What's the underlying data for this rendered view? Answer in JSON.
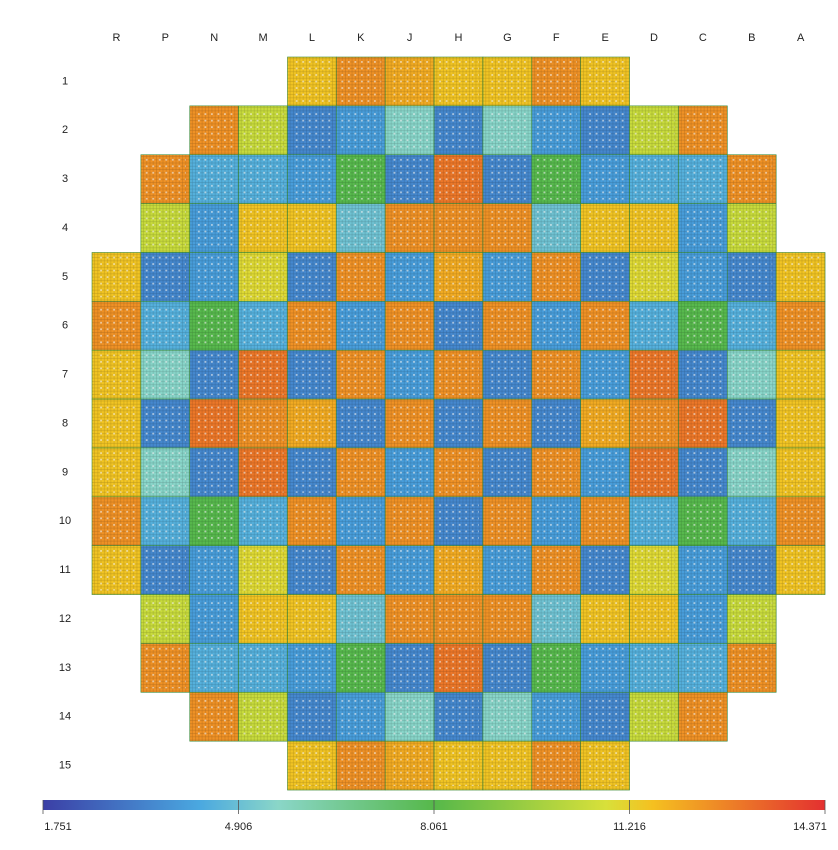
{
  "chart_data": {
    "type": "heatmap",
    "columns": [
      "R",
      "P",
      "N",
      "M",
      "L",
      "K",
      "J",
      "H",
      "G",
      "F",
      "E",
      "D",
      "C",
      "B",
      "A"
    ],
    "rows": [
      "1",
      "2",
      "3",
      "4",
      "5",
      "6",
      "7",
      "8",
      "9",
      "10",
      "11",
      "12",
      "13",
      "14",
      "15"
    ],
    "values": [
      [
        null,
        null,
        null,
        null,
        11.5,
        12.5,
        12,
        11.5,
        11.5,
        12.5,
        11.5,
        null,
        null,
        null,
        null
      ],
      [
        null,
        null,
        12.5,
        10.5,
        3.5,
        4,
        5.5,
        3.5,
        5.5,
        4,
        3.5,
        10.5,
        12.5,
        null,
        null
      ],
      [
        null,
        12.5,
        4.5,
        4.5,
        4,
        8,
        3.5,
        13,
        3.5,
        8,
        4,
        4.5,
        4.5,
        12.5,
        null
      ],
      [
        null,
        10.5,
        4,
        11.5,
        11.5,
        5,
        12.5,
        12.5,
        12.5,
        5,
        11.5,
        11.5,
        4,
        10.5,
        null
      ],
      [
        11.5,
        3.5,
        4,
        11,
        3.5,
        12.5,
        4,
        12,
        4,
        12.5,
        3.5,
        11,
        4,
        3.5,
        11.5
      ],
      [
        12.5,
        4.5,
        8,
        4.5,
        12.5,
        4,
        12.5,
        3.5,
        12.5,
        4,
        12.5,
        4.5,
        8,
        4.5,
        12.5
      ],
      [
        11.5,
        5.5,
        3.5,
        13,
        3.5,
        12.5,
        4,
        12.5,
        3.5,
        12.5,
        4,
        13,
        3.5,
        5.5,
        11.5
      ],
      [
        11.5,
        3.5,
        13,
        12.5,
        12,
        3.5,
        12.5,
        3.5,
        12.5,
        3.5,
        12,
        12.5,
        13,
        3.5,
        11.5
      ],
      [
        11.5,
        5.5,
        3.5,
        13,
        3.5,
        12.5,
        4,
        12.5,
        3.5,
        12.5,
        4,
        13,
        3.5,
        5.5,
        11.5
      ],
      [
        12.5,
        4.5,
        8,
        4.5,
        12.5,
        4,
        12.5,
        3.5,
        12.5,
        4,
        12.5,
        4.5,
        8,
        4.5,
        12.5
      ],
      [
        11.5,
        3.5,
        4,
        11,
        3.5,
        12.5,
        4,
        12,
        4,
        12.5,
        3.5,
        11,
        4,
        3.5,
        11.5
      ],
      [
        null,
        10.5,
        4,
        11.5,
        11.5,
        5,
        12.5,
        12.5,
        12.5,
        5,
        11.5,
        11.5,
        4,
        10.5,
        null
      ],
      [
        null,
        12.5,
        4.5,
        4.5,
        4,
        8,
        3.5,
        13,
        3.5,
        8,
        4,
        4.5,
        4.5,
        12.5,
        null
      ],
      [
        null,
        null,
        12.5,
        10.5,
        3.5,
        4,
        5.5,
        3.5,
        5.5,
        4,
        3.5,
        10.5,
        12.5,
        null,
        null
      ],
      [
        null,
        null,
        null,
        null,
        11.5,
        12.5,
        12,
        11.5,
        11.5,
        12.5,
        11.5,
        null,
        null,
        null,
        null
      ]
    ],
    "colorbar": {
      "lim": [
        1.751,
        14.371
      ],
      "ticks": [
        1.751,
        4.906,
        8.061,
        11.216,
        14.371
      ]
    }
  }
}
